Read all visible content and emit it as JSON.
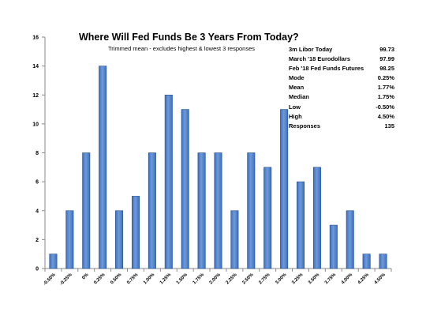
{
  "chart_data": {
    "type": "bar",
    "title": "Where Will Fed Funds Be 3 Years From Today?",
    "subtitle": "Trimmed mean - excludes highest & lowest 3 responses",
    "categories": [
      "-0.50%",
      "-0.25%",
      "0%",
      "0.25%",
      "0.50%",
      "0.75%",
      "1.00%",
      "1.25%",
      "1.50%",
      "1.75%",
      "2.00%",
      "2.25%",
      "2.50%",
      "2.75%",
      "3.00%",
      "3.25%",
      "3.50%",
      "3.75%",
      "4.00%",
      "4.25%",
      "4.50%"
    ],
    "values": [
      1,
      4,
      8,
      14,
      4,
      5,
      8,
      12,
      11,
      8,
      8,
      4,
      8,
      7,
      11,
      6,
      7,
      3,
      4,
      1,
      1
    ],
    "ylim": [
      0,
      16
    ],
    "yticks": [
      "0",
      "2",
      "4",
      "6",
      "8",
      "10",
      "12",
      "14",
      "16"
    ],
    "grid": false,
    "legend": "none",
    "colors": {
      "bar_top": "#6f9ad8",
      "bar_mid": "#3c6fc0",
      "bar_edge": "#1f4f96",
      "axis": "#8a8a8a"
    }
  },
  "stats": [
    {
      "label": "3m Libor Today",
      "value": "99.73"
    },
    {
      "label": "March '18 Eurodollars",
      "value": "97.99"
    },
    {
      "label": "Feb '18 Fed Funds Futures",
      "value": "98.25"
    },
    {
      "label": "Mode",
      "value": "0.25%"
    },
    {
      "label": "Mean",
      "value": "1.77%"
    },
    {
      "label": "Median",
      "value": "1.75%"
    },
    {
      "label": "Low",
      "value": "-0.50%"
    },
    {
      "label": "High",
      "value": "4.50%"
    },
    {
      "label": "Responses",
      "value": "135"
    }
  ]
}
